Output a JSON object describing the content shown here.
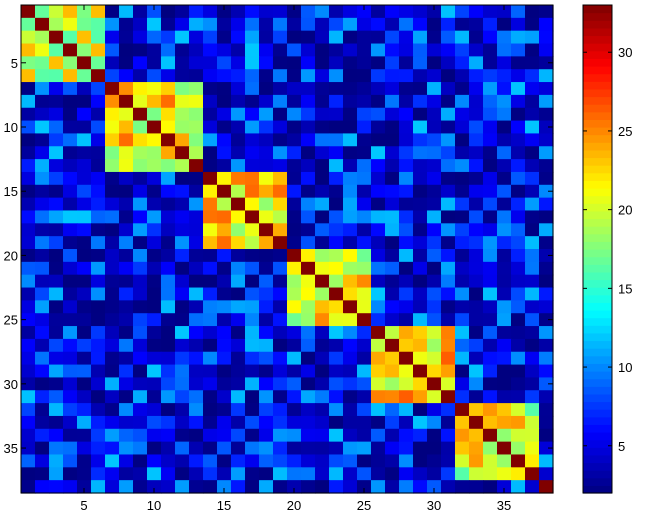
{
  "chart_data": {
    "type": "heatmap",
    "title": "",
    "xlabel": "",
    "ylabel": "",
    "n": 38,
    "x_ticks": [
      5,
      10,
      15,
      20,
      25,
      30,
      35
    ],
    "x_tick_labels": [
      "5",
      "10",
      "15",
      "20",
      "25",
      "30",
      "35"
    ],
    "y_ticks": [
      5,
      10,
      15,
      20,
      25,
      30,
      35
    ],
    "y_tick_labels": [
      "5",
      "10",
      "15",
      "20",
      "25",
      "30",
      "35"
    ],
    "colorbar": {
      "colormap": "jet",
      "range": [
        2,
        33
      ],
      "ticks": [
        5,
        10,
        15,
        20,
        25,
        30
      ],
      "tick_labels": [
        "5",
        "10",
        "15",
        "20",
        "25",
        "30"
      ]
    },
    "blocks": [
      {
        "start": 1,
        "end": 6,
        "level": 20
      },
      {
        "start": 7,
        "end": 13,
        "level": 21
      },
      {
        "start": 14,
        "end": 19,
        "level": 21
      },
      {
        "start": 20,
        "end": 25,
        "level": 20
      },
      {
        "start": 26,
        "end": 31,
        "level": 22
      },
      {
        "start": 32,
        "end": 37,
        "level": 20
      },
      {
        "start": 38,
        "end": 38,
        "level": 33
      }
    ],
    "diagonal_value": 33,
    "background_range": [
      2,
      12
    ]
  },
  "colors": {
    "axis": "#000000",
    "background": "#ffffff"
  }
}
